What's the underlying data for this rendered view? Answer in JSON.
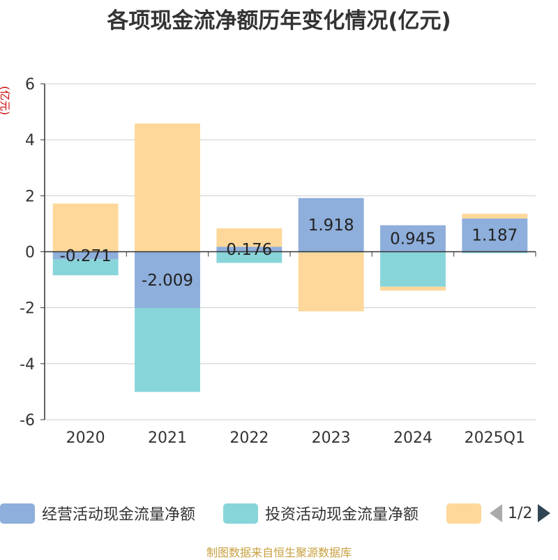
{
  "title": "各项现金流净额历年变化情况(亿元)",
  "chart_data": {
    "type": "bar",
    "stacked": true,
    "ylabel": "(亿元)",
    "ylim": [
      -6,
      6
    ],
    "yticks": [
      -6,
      -4,
      -2,
      0,
      2,
      4,
      6
    ],
    "grid": true,
    "legend_position": "bottom",
    "categories": [
      "2020",
      "2021",
      "2022",
      "2023",
      "2024",
      "2025Q1"
    ],
    "series": [
      {
        "name": "经营活动现金流量净额",
        "color": "#8eaedb",
        "values": [
          -0.271,
          -2.009,
          0.176,
          1.918,
          0.945,
          1.187
        ],
        "labels": [
          "-0.271",
          "-2.009",
          "0.176",
          "1.918",
          "0.945",
          "1.187"
        ]
      },
      {
        "name": "投资活动现金流量净额",
        "color": "#88d5d9",
        "values": [
          -0.57,
          -3.0,
          -0.4,
          -0.03,
          -1.25,
          -0.05
        ]
      },
      {
        "name": "",
        "color": "#fdd89a",
        "values": [
          1.72,
          4.58,
          0.66,
          -2.1,
          -0.14,
          0.17
        ]
      }
    ]
  },
  "legend": {
    "pager": "1/2"
  },
  "source": "制图数据来自恒生聚源数据库"
}
